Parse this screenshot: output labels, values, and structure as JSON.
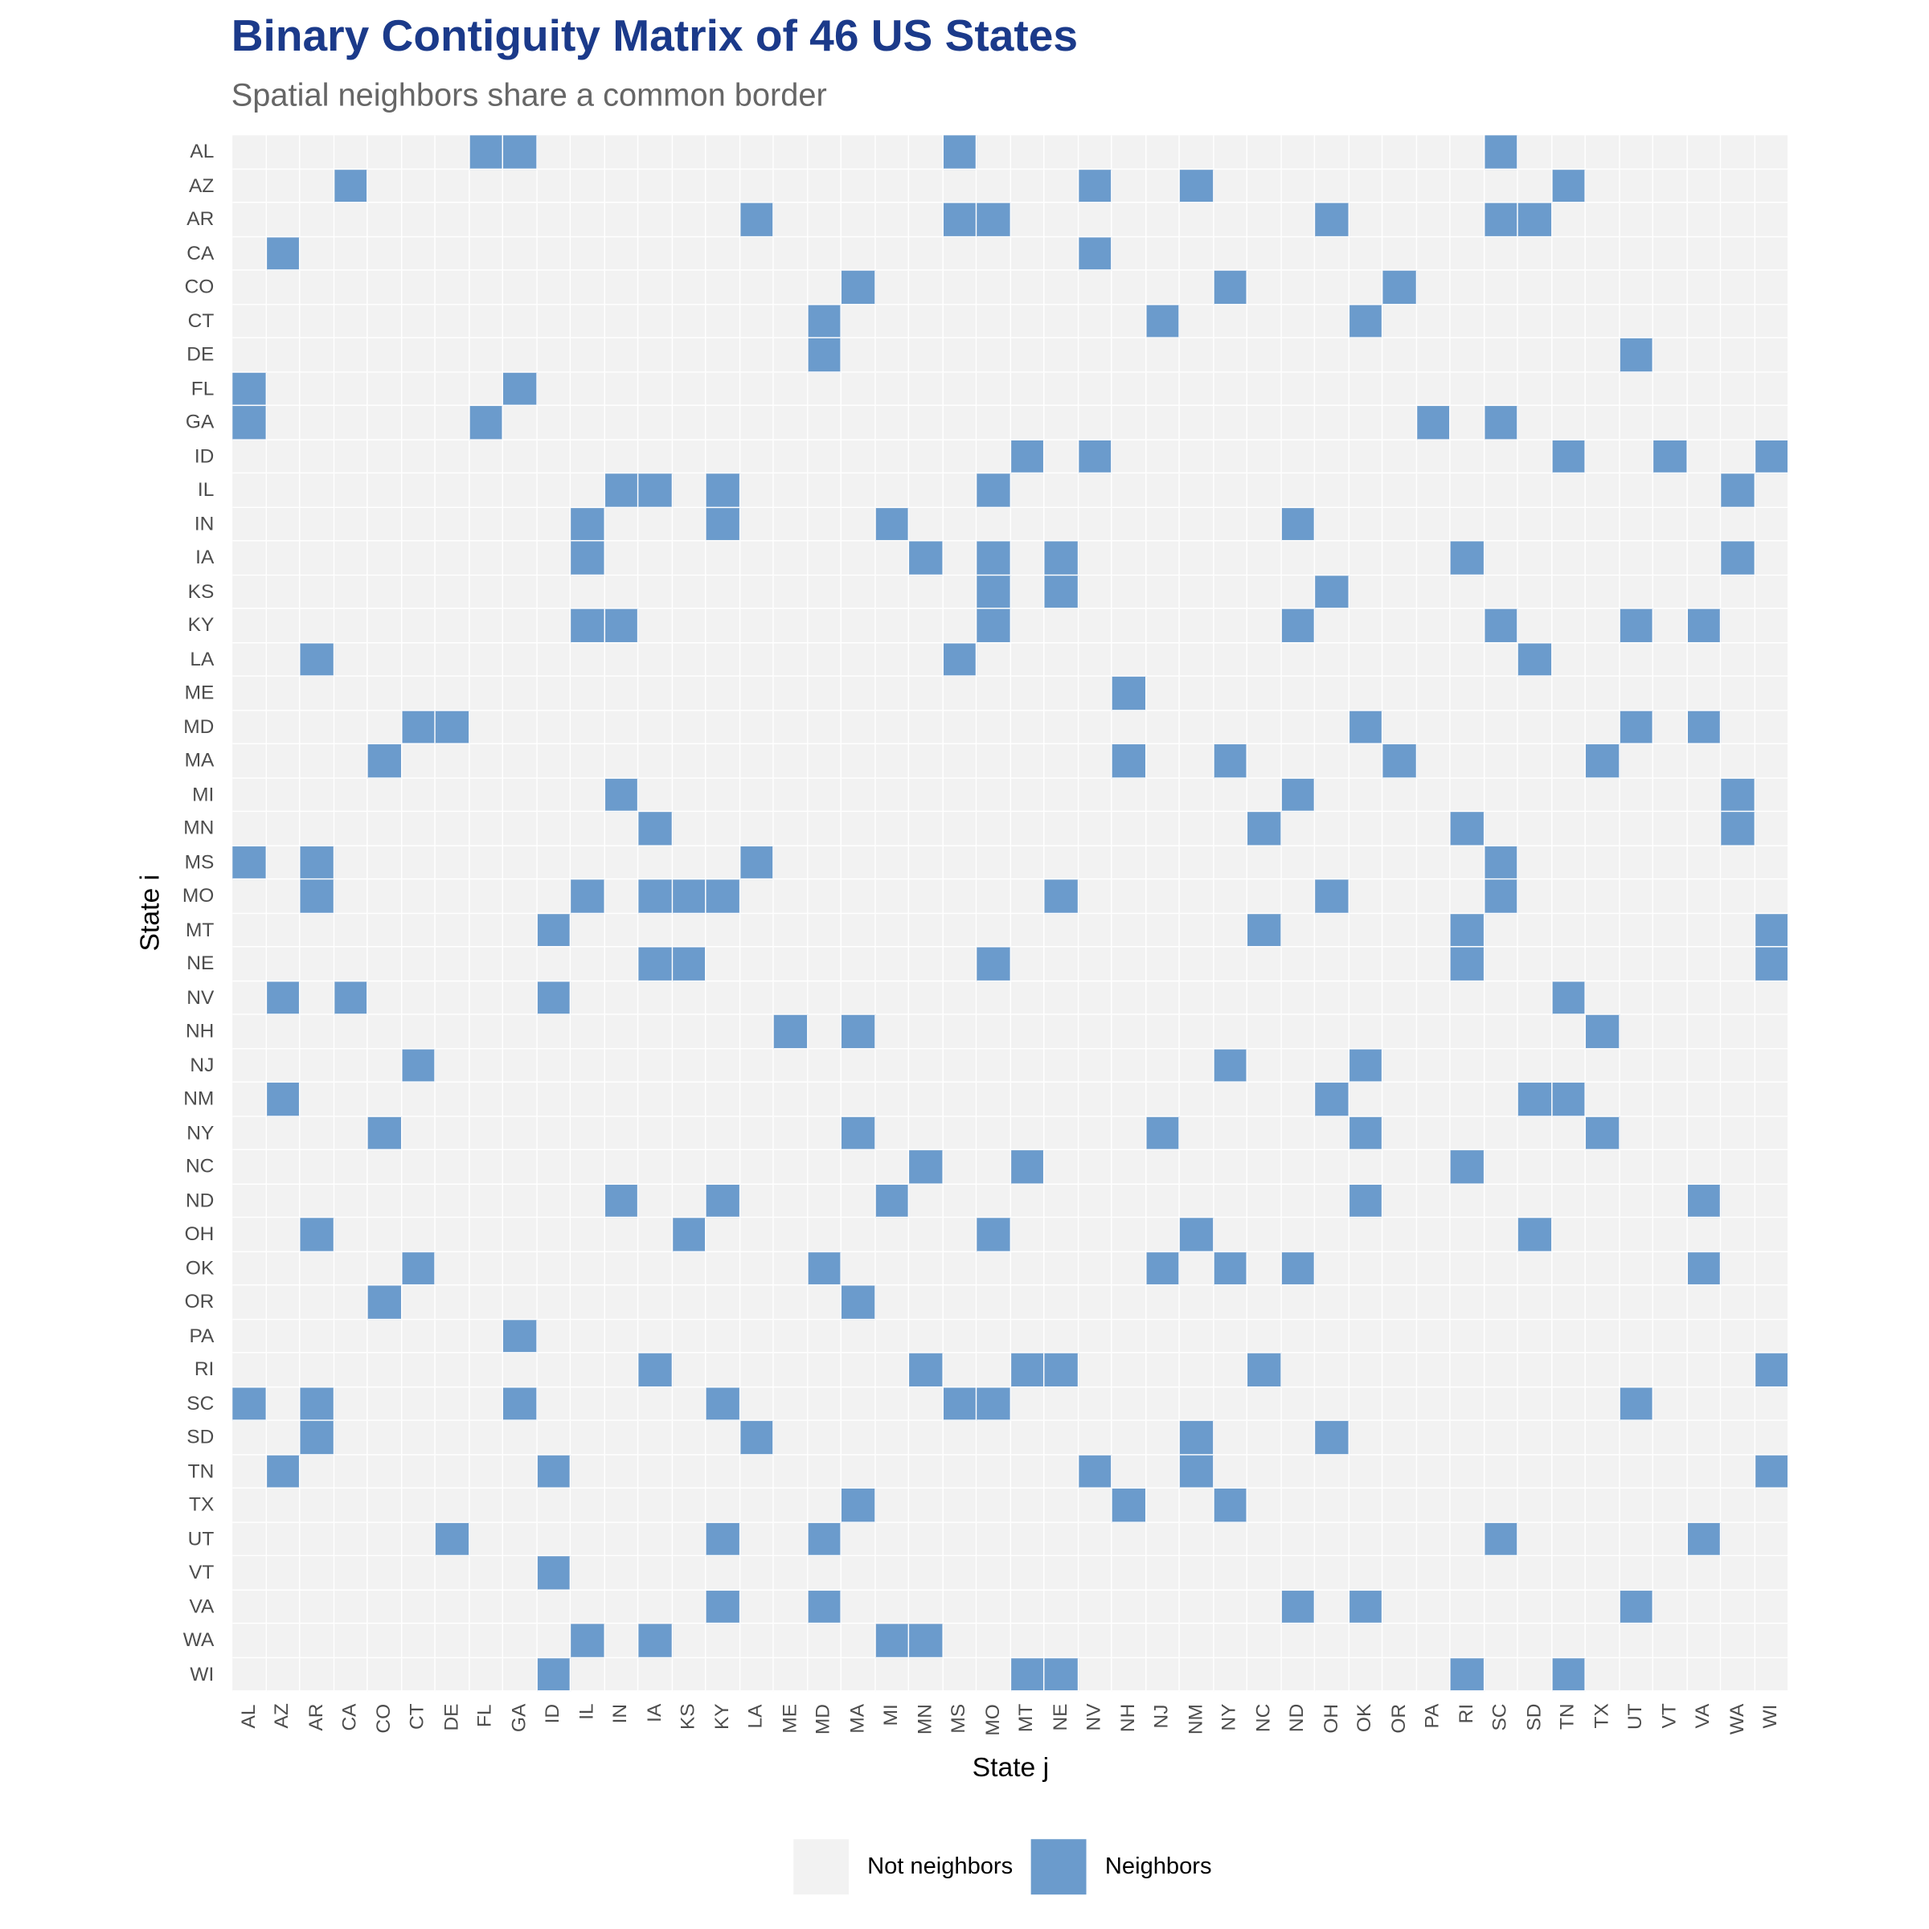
{
  "header": {
    "title": "Binary Contiguity Matrix of 46 US States",
    "subtitle": "Spatial neighbors share a common border"
  },
  "axes": {
    "x_title": "State j",
    "y_title": "State i"
  },
  "legend": {
    "items": [
      {
        "label": "Not neighbors",
        "color": "#f2f2f2"
      },
      {
        "label": "Neighbors",
        "color": "#6b9bcc"
      }
    ]
  },
  "colors": {
    "title": "#1b3a8a",
    "neighbor": "#6b9bcc",
    "not_neighbor": "#f2f2f2"
  },
  "chart_data": {
    "type": "heatmap",
    "title": "Binary Contiguity Matrix of 46 US States",
    "subtitle": "Spatial neighbors share a common border",
    "xlabel": "State j",
    "ylabel": "State i",
    "legend_position": "bottom",
    "values_legend": {
      "0": "Not neighbors",
      "1": "Neighbors"
    },
    "states": [
      "AL",
      "AZ",
      "AR",
      "CA",
      "CO",
      "CT",
      "DE",
      "FL",
      "GA",
      "ID",
      "IL",
      "IN",
      "IA",
      "KS",
      "KY",
      "LA",
      "ME",
      "MD",
      "MA",
      "MI",
      "MN",
      "MS",
      "MO",
      "MT",
      "NE",
      "NV",
      "NH",
      "NJ",
      "NM",
      "NY",
      "NC",
      "ND",
      "OH",
      "OK",
      "OR",
      "PA",
      "RI",
      "SC",
      "SD",
      "TN",
      "TX",
      "UT",
      "VT",
      "VA",
      "WA",
      "WI"
    ],
    "neighbors": {
      "AL": [
        "FL",
        "GA",
        "MS",
        "SC"
      ],
      "AZ": [
        "CA",
        "NV",
        "NM",
        "TN"
      ],
      "AR": [
        "LA",
        "MS",
        "MO",
        "OH",
        "SC",
        "SD"
      ],
      "CA": [
        "AZ",
        "NV"
      ],
      "CO": [
        "MA",
        "NY",
        "OR"
      ],
      "CT": [
        "MD",
        "NJ",
        "OK"
      ],
      "DE": [
        "MD",
        "UT"
      ],
      "FL": [
        "AL",
        "GA"
      ],
      "GA": [
        "AL",
        "FL",
        "PA",
        "SC"
      ],
      "ID": [
        "MT",
        "NV",
        "TN",
        "VT",
        "WI"
      ],
      "IL": [
        "IN",
        "IA",
        "KY",
        "MO",
        "WA"
      ],
      "IN": [
        "IL",
        "KY",
        "MI",
        "ND"
      ],
      "IA": [
        "IL",
        "MN",
        "MO",
        "NE",
        "RI",
        "WA"
      ],
      "KS": [
        "MO",
        "NE",
        "OH"
      ],
      "KY": [
        "IL",
        "IN",
        "MO",
        "ND",
        "SC",
        "UT",
        "VA"
      ],
      "LA": [
        "AR",
        "MS",
        "SD"
      ],
      "ME": [
        "NH"
      ],
      "MD": [
        "CT",
        "DE",
        "OK",
        "UT",
        "VA"
      ],
      "MA": [
        "CO",
        "NH",
        "NY",
        "OR",
        "TX"
      ],
      "MI": [
        "IN",
        "ND",
        "WA"
      ],
      "MN": [
        "IA",
        "NC",
        "RI",
        "WA"
      ],
      "MS": [
        "AL",
        "AR",
        "LA",
        "SC"
      ],
      "MO": [
        "AR",
        "IL",
        "IA",
        "KS",
        "KY",
        "NE",
        "OH",
        "SC"
      ],
      "MT": [
        "ID",
        "NC",
        "RI",
        "WI"
      ],
      "NE": [
        "IA",
        "KS",
        "MO",
        "RI",
        "WI"
      ],
      "NV": [
        "AZ",
        "CA",
        "ID",
        "TN"
      ],
      "NH": [
        "ME",
        "MA",
        "TX"
      ],
      "NJ": [
        "CT",
        "NY",
        "OK"
      ],
      "NM": [
        "AZ",
        "OH",
        "SD",
        "TN"
      ],
      "NY": [
        "CO",
        "MA",
        "NJ",
        "OK",
        "TX"
      ],
      "NC": [
        "MN",
        "MT",
        "RI"
      ],
      "ND": [
        "IN",
        "KY",
        "MI",
        "OK",
        "VA"
      ],
      "OH": [
        "AR",
        "KS",
        "MO",
        "NM",
        "SD"
      ],
      "OK": [
        "CT",
        "MD",
        "NJ",
        "NY",
        "ND",
        "VA"
      ],
      "OR": [
        "CO",
        "MA"
      ],
      "PA": [
        "GA"
      ],
      "RI": [
        "IA",
        "MN",
        "MT",
        "NE",
        "NC",
        "WI"
      ],
      "SC": [
        "AL",
        "AR",
        "GA",
        "KY",
        "MS",
        "MO",
        "UT"
      ],
      "SD": [
        "AR",
        "LA",
        "NM",
        "OH"
      ],
      "TN": [
        "AZ",
        "ID",
        "NV",
        "NM",
        "WI"
      ],
      "TX": [
        "MA",
        "NH",
        "NY"
      ],
      "UT": [
        "DE",
        "KY",
        "MD",
        "SC",
        "VA"
      ],
      "VT": [
        "ID"
      ],
      "VA": [
        "KY",
        "MD",
        "ND",
        "OK",
        "UT"
      ],
      "WA": [
        "IL",
        "IA",
        "MI",
        "MN"
      ],
      "WI": [
        "ID",
        "MT",
        "NE",
        "RI",
        "TN"
      ]
    }
  }
}
